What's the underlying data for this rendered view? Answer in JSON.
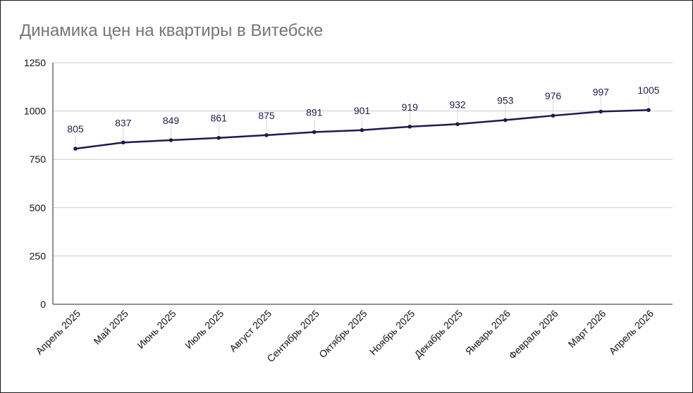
{
  "chart_data": {
    "type": "line",
    "title": "Динамика цен на квартиры в Витебске",
    "xlabel": "",
    "ylabel": "",
    "categories": [
      "Апрель 2025",
      "Май 2025",
      "Июнь 2025",
      "Июль 2025",
      "Август 2025",
      "Сентябрь 2025",
      "Октябрь 2025",
      "Ноябрь 2025",
      "Декабрь 2025",
      "Январь 2026",
      "Февраль 2026",
      "Март 2026",
      "Апрель 2026"
    ],
    "series": [
      {
        "values": [
          805,
          837,
          849,
          861,
          875,
          891,
          901,
          919,
          932,
          953,
          976,
          997,
          1005
        ],
        "color": "#1e1a4d"
      }
    ],
    "ylim": [
      0,
      1250
    ],
    "yticks": [
      0,
      250,
      500,
      750,
      1000,
      1250
    ],
    "grid": true,
    "legend": "none",
    "data_labels": true
  }
}
